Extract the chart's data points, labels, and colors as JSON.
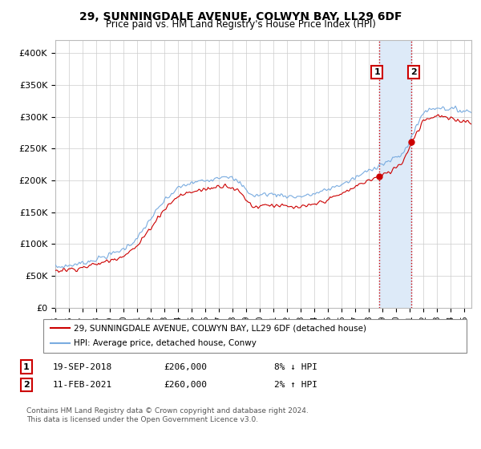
{
  "title": "29, SUNNINGDALE AVENUE, COLWYN BAY, LL29 6DF",
  "subtitle": "Price paid vs. HM Land Registry's House Price Index (HPI)",
  "ylabel_ticks": [
    "£0",
    "£50K",
    "£100K",
    "£150K",
    "£200K",
    "£250K",
    "£300K",
    "£350K",
    "£400K"
  ],
  "ytick_values": [
    0,
    50000,
    100000,
    150000,
    200000,
    250000,
    300000,
    350000,
    400000
  ],
  "ylim": [
    0,
    420000
  ],
  "xlim_start": 1995,
  "xlim_end": 2025.5,
  "sale1_date": 2018.72,
  "sale1_price": 206000,
  "sale1_label": "1",
  "sale1_hpi_text": "8% ↓ HPI",
  "sale1_date_text": "19-SEP-2018",
  "sale2_date": 2021.11,
  "sale2_price": 260000,
  "sale2_label": "2",
  "sale2_hpi_text": "2% ↑ HPI",
  "sale2_date_text": "11-FEB-2021",
  "line_color_property": "#cc0000",
  "line_color_hpi": "#7aace0",
  "vline_color": "#cc0000",
  "shaded_color": "#ddeaf8",
  "legend_property": "29, SUNNINGDALE AVENUE, COLWYN BAY, LL29 6DF (detached house)",
  "legend_hpi": "HPI: Average price, detached house, Conwy",
  "footer_line1": "Contains HM Land Registry data © Crown copyright and database right 2024.",
  "footer_line2": "This data is licensed under the Open Government Licence v3.0.",
  "background_color": "#ffffff",
  "grid_color": "#cccccc"
}
